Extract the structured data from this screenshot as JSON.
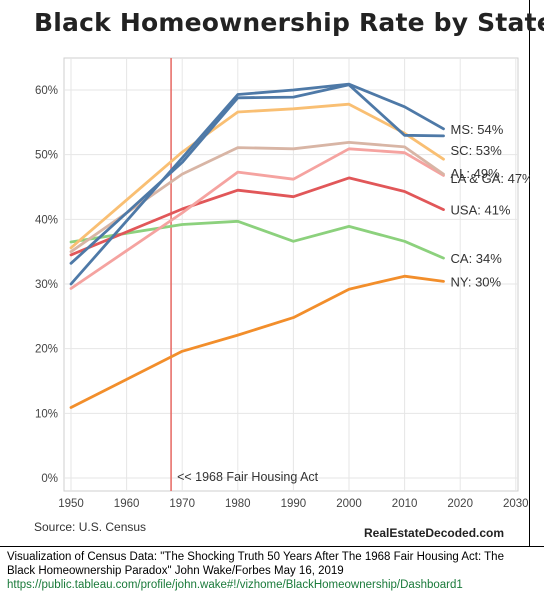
{
  "title": "Black Homeownership Rate by State",
  "source": "Source: U.S. Census",
  "site": "RealEstateDecoded.com",
  "caption": {
    "line1": "Visualization of Census Data: \"The Shocking Truth 50 Years After The 1968 Fair Housing Act: The",
    "line2": "Black Homeownership Paradox\" John Wake/Forbes  May 16, 2019",
    "link": "https://public.tableau.com/profile/john.wake#!/vizhome/BlackHomeownership/Dashboard1"
  },
  "chart_data": {
    "type": "line",
    "title": "Black Homeownership Rate by State",
    "xlabel": "",
    "ylabel": "",
    "xlim": [
      1948,
      2032
    ],
    "ylim": [
      0,
      65
    ],
    "x_ticks": [
      1950,
      1960,
      1970,
      1980,
      1990,
      2000,
      2010,
      2020,
      2030
    ],
    "x_tick_labels": [
      "1950",
      "1960",
      "1970",
      "1980",
      "1990",
      "2000",
      "2010",
      "2020",
      "2030"
    ],
    "y_ticks": [
      0,
      10,
      20,
      30,
      40,
      50,
      60
    ],
    "y_tick_labels": [
      "0%",
      "10%",
      "20%",
      "30%",
      "40%",
      "50%",
      "60%"
    ],
    "grid": true,
    "annotation": {
      "x": 1968,
      "label": "<< 1968 Fair Housing Act",
      "color": "#e8706a"
    },
    "series": [
      {
        "name": "MS: 54%",
        "color": "#4e79a7",
        "points": [
          [
            1950,
            30.0
          ],
          [
            1970,
            49.5
          ],
          [
            1980,
            59.3
          ],
          [
            1990,
            60.0
          ],
          [
            2000,
            60.9
          ],
          [
            2010,
            57.4
          ],
          [
            2017,
            54.0
          ]
        ]
      },
      {
        "name": "SC: 53%",
        "color": "#4e79a7",
        "points": [
          [
            1950,
            33.2
          ],
          [
            1970,
            48.8
          ],
          [
            1980,
            58.8
          ],
          [
            1990,
            58.9
          ],
          [
            2000,
            60.8
          ],
          [
            2010,
            53.0
          ],
          [
            2017,
            52.9
          ]
        ]
      },
      {
        "name": "AL: 49%",
        "color": "#f9bf73",
        "points": [
          [
            1950,
            35.6
          ],
          [
            1970,
            50.4
          ],
          [
            1980,
            56.6
          ],
          [
            1990,
            57.1
          ],
          [
            2000,
            57.8
          ],
          [
            2010,
            53.3
          ],
          [
            2017,
            49.3
          ]
        ]
      },
      {
        "name": "LA & GA: 47%",
        "color": "#d8b5a5",
        "points": [
          [
            1950,
            35.0
          ],
          [
            1970,
            47.0
          ],
          [
            1980,
            51.1
          ],
          [
            1990,
            50.9
          ],
          [
            2000,
            51.9
          ],
          [
            2010,
            51.2
          ],
          [
            2017,
            47.0
          ]
        ]
      },
      {
        "name": "",
        "color": "#f5a3a0",
        "points": [
          [
            1950,
            29.3
          ],
          [
            1970,
            41.0
          ],
          [
            1980,
            47.3
          ],
          [
            1990,
            46.2
          ],
          [
            2000,
            50.9
          ],
          [
            2010,
            50.3
          ],
          [
            2017,
            46.8
          ]
        ]
      },
      {
        "name": "USA: 41%",
        "color": "#e15759",
        "points": [
          [
            1950,
            34.5
          ],
          [
            1970,
            41.6
          ],
          [
            1980,
            44.5
          ],
          [
            1990,
            43.5
          ],
          [
            2000,
            46.4
          ],
          [
            2010,
            44.3
          ],
          [
            2017,
            41.5
          ]
        ]
      },
      {
        "name": "CA: 34%",
        "color": "#8cd17d",
        "points": [
          [
            1950,
            36.5
          ],
          [
            1970,
            39.2
          ],
          [
            1980,
            39.7
          ],
          [
            1990,
            36.6
          ],
          [
            2000,
            38.9
          ],
          [
            2010,
            36.6
          ],
          [
            2017,
            34.0
          ]
        ]
      },
      {
        "name": "NY: 30%",
        "color": "#f28e2b",
        "points": [
          [
            1950,
            10.9
          ],
          [
            1970,
            19.6
          ],
          [
            1980,
            22.1
          ],
          [
            1990,
            24.8
          ],
          [
            2000,
            29.2
          ],
          [
            2010,
            31.2
          ],
          [
            2017,
            30.4
          ]
        ]
      }
    ]
  }
}
